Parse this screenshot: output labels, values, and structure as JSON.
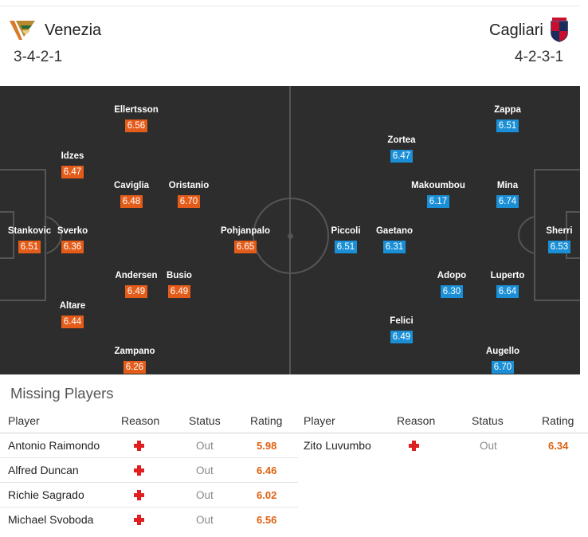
{
  "home": {
    "name": "Venezia",
    "formation": "3-4-2-1",
    "players": [
      {
        "name": "Stankovic",
        "rating": "6.51"
      },
      {
        "name": "Idzes",
        "rating": "6.47"
      },
      {
        "name": "Sverko",
        "rating": "6.36"
      },
      {
        "name": "Altare",
        "rating": "6.44"
      },
      {
        "name": "Ellertsson",
        "rating": "6.56"
      },
      {
        "name": "Caviglia",
        "rating": "6.48"
      },
      {
        "name": "Andersen",
        "rating": "6.49"
      },
      {
        "name": "Zampano",
        "rating": "6.26"
      },
      {
        "name": "Oristanio",
        "rating": "6.70"
      },
      {
        "name": "Busio",
        "rating": "6.49"
      },
      {
        "name": "Pohjanpalo",
        "rating": "6.65"
      }
    ]
  },
  "away": {
    "name": "Cagliari",
    "formation": "4-2-3-1",
    "players": [
      {
        "name": "Sherri",
        "rating": "6.53"
      },
      {
        "name": "Zappa",
        "rating": "6.51"
      },
      {
        "name": "Mina",
        "rating": "6.74"
      },
      {
        "name": "Luperto",
        "rating": "6.64"
      },
      {
        "name": "Augello",
        "rating": "6.70"
      },
      {
        "name": "Makoumbou",
        "rating": "6.17"
      },
      {
        "name": "Adopo",
        "rating": "6.30"
      },
      {
        "name": "Zortea",
        "rating": "6.47"
      },
      {
        "name": "Gaetano",
        "rating": "6.31"
      },
      {
        "name": "Felici",
        "rating": "6.49"
      },
      {
        "name": "Piccoli",
        "rating": "6.51"
      }
    ]
  },
  "colors": {
    "home_badge": "#e45c1a",
    "away_badge": "#1a8fd6",
    "pitch": "#2d2d2d",
    "rating_text": "#e06010"
  },
  "missing": {
    "title": "Missing Players",
    "headers": {
      "player": "Player",
      "reason": "Reason",
      "status": "Status",
      "rating": "Rating"
    },
    "reason_icon": "injury-cross-icon",
    "home": [
      {
        "player": "Antonio Raimondo",
        "status": "Out",
        "rating": "5.98"
      },
      {
        "player": "Alfred Duncan",
        "status": "Out",
        "rating": "6.46"
      },
      {
        "player": "Richie Sagrado",
        "status": "Out",
        "rating": "6.02"
      },
      {
        "player": "Michael Svoboda",
        "status": "Out",
        "rating": "6.56"
      }
    ],
    "away": [
      {
        "player": "Zito Luvumbo",
        "status": "Out",
        "rating": "6.34"
      }
    ]
  }
}
